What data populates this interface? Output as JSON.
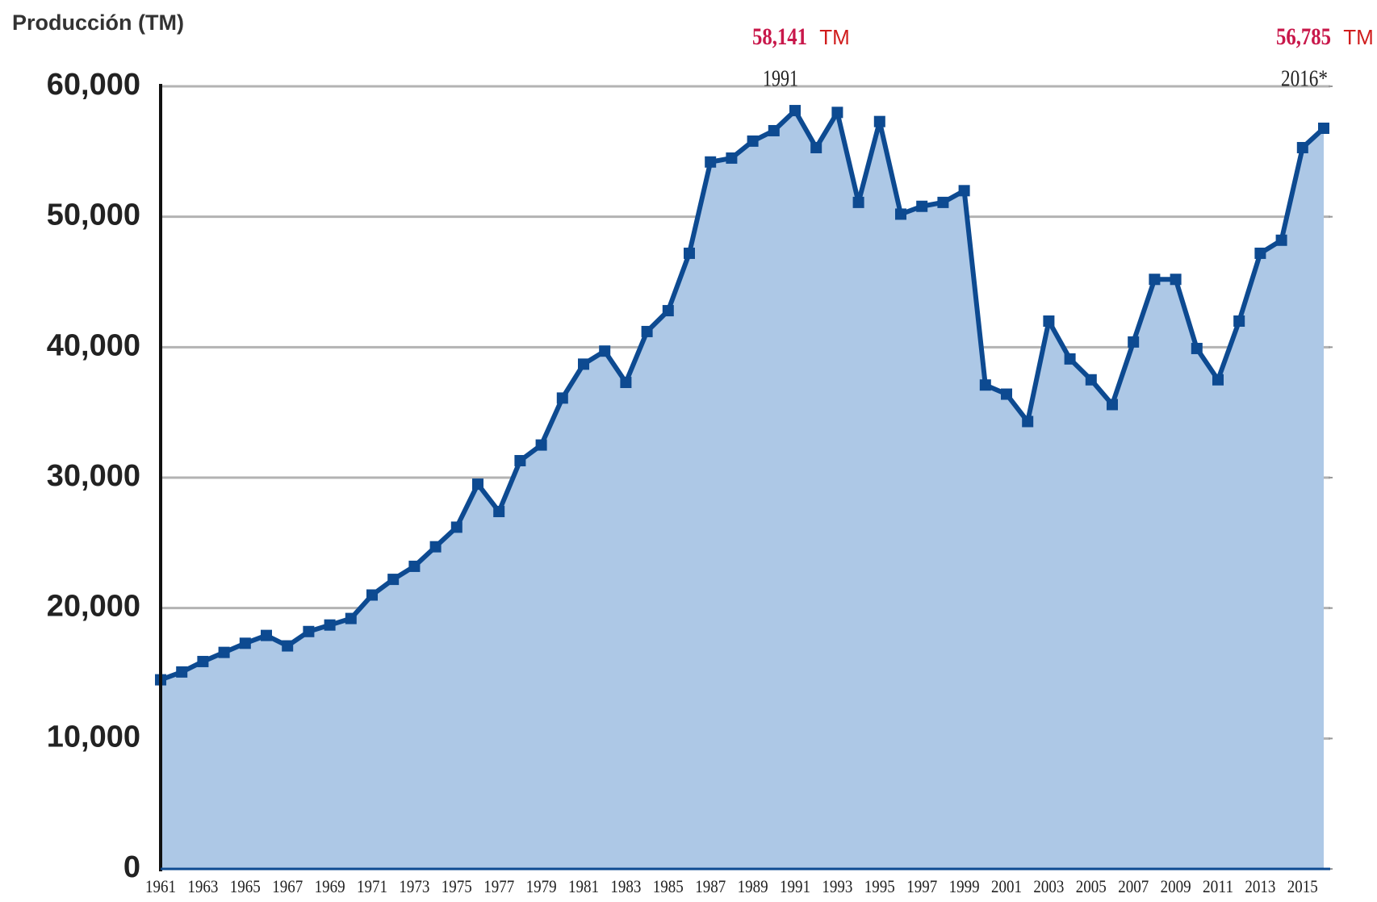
{
  "chart_data": {
    "type": "area",
    "title": "Producción (TM)",
    "categories": [
      "1961",
      null,
      "1963",
      null,
      "1965",
      null,
      "1967",
      null,
      "1969",
      null,
      "1971",
      null,
      "1973",
      null,
      "1975",
      null,
      "1977",
      null,
      "1979",
      null,
      "1981",
      null,
      "1983",
      null,
      "1985",
      null,
      "1987",
      null,
      "1989",
      null,
      "1991",
      null,
      "1993",
      null,
      "1995",
      null,
      "1997",
      null,
      "1999",
      null,
      "2001",
      null,
      "2003",
      null,
      "2005",
      null,
      "2007",
      null,
      "2009",
      null,
      "2011",
      null,
      "2013",
      null,
      "2015",
      null
    ],
    "values": [
      14500,
      15100,
      15900,
      16600,
      17300,
      17900,
      17100,
      18200,
      18700,
      19200,
      21000,
      22200,
      23200,
      24700,
      26200,
      29500,
      27400,
      31300,
      32500,
      36100,
      38700,
      39700,
      37300,
      41200,
      42800,
      47200,
      54200,
      54500,
      55800,
      56600,
      58141,
      55300,
      58000,
      51100,
      57300,
      50200,
      50800,
      51100,
      52000,
      37100,
      36400,
      34300,
      42000,
      39100,
      37500,
      35600,
      40400,
      45200,
      45200,
      39900,
      37500,
      42000,
      47200,
      48200,
      55300,
      56785
    ],
    "color": "#0d4a91",
    "fill": "#adc8e6",
    "ylim": [
      0,
      60000
    ],
    "yticks": [
      0,
      {
        "value": 10000,
        "label": "10,000"
      },
      {
        "value": 20000,
        "label": "20,000"
      },
      {
        "value": 30000,
        "label": "30,000"
      },
      {
        "value": 40000,
        "label": "40,000"
      },
      {
        "value": 50000,
        "label": "50,000"
      },
      {
        "value": 60000,
        "label": "60,000"
      }
    ],
    "grid": true,
    "annotations": [
      {
        "text": "58,141",
        "unit": "TM",
        "label": "1991"
      },
      {
        "text": "56,785",
        "unit": "TM",
        "label": "2016*"
      }
    ]
  }
}
